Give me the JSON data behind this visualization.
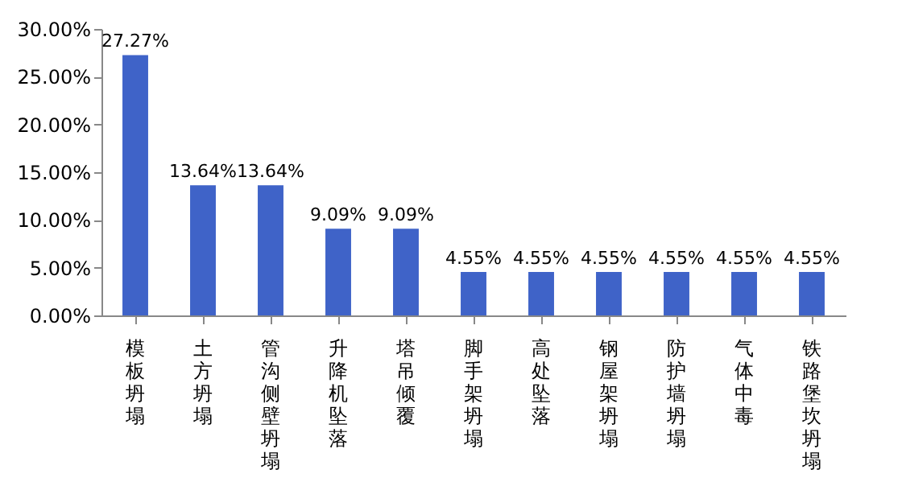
{
  "chart_data": {
    "type": "bar",
    "categories": [
      "模板坍塌",
      "土方坍塌",
      "管沟侧壁坍塌",
      "升降机坠落",
      "塔吊倾覆",
      "脚手架坍塌",
      "高处坠落",
      "钢屋架坍塌",
      "防护墙坍塌",
      "气体中毒",
      "铁路堡坎坍塌"
    ],
    "values": [
      27.27,
      13.64,
      13.64,
      9.09,
      9.09,
      4.55,
      4.55,
      4.55,
      4.55,
      4.55,
      4.55
    ],
    "value_labels": [
      "27.27%",
      "13.64%",
      "13.64%",
      "9.09%",
      "9.09%",
      "4.55%",
      "4.55%",
      "4.55%",
      "4.55%",
      "4.55%",
      "4.55%"
    ],
    "color": "#3f63c8",
    "ylim": [
      0,
      30
    ],
    "yticks": [
      {
        "value": 0,
        "label": "0.00%"
      },
      {
        "value": 5,
        "label": "5.00%"
      },
      {
        "value": 10,
        "label": "10.00%"
      },
      {
        "value": 15,
        "label": "15.00%"
      },
      {
        "value": 20,
        "label": "20.00%"
      },
      {
        "value": 25,
        "label": "25.00%"
      },
      {
        "value": 30,
        "label": "30.00%"
      }
    ],
    "grid": false
  }
}
